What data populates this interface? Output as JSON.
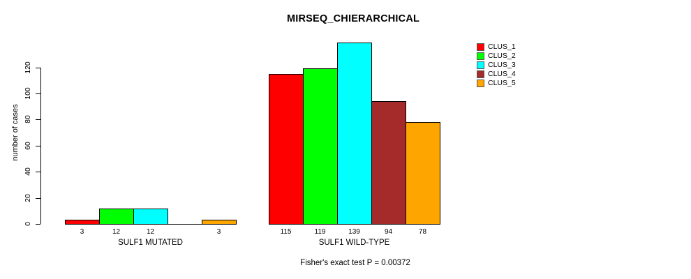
{
  "chart_data": {
    "type": "bar",
    "title": "MIRSEQ_CHIERARCHICAL",
    "ylabel": "number of cases",
    "xlabel": "",
    "ylim": [
      0,
      120
    ],
    "yticks": [
      0,
      20,
      40,
      60,
      80,
      100,
      120
    ],
    "grid": false,
    "legend_position": "top-right",
    "series_names": [
      "CLUS_1",
      "CLUS_2",
      "CLUS_3",
      "CLUS_4",
      "CLUS_5"
    ],
    "colors": [
      "#FF0000",
      "#00FF00",
      "#00FFFF",
      "#A52A2A",
      "#FFA500"
    ],
    "groups": [
      {
        "label": "SULF1 MUTATED",
        "values": [
          3,
          12,
          12,
          0,
          3
        ]
      },
      {
        "label": "SULF1 WILD-TYPE",
        "values": [
          115,
          119,
          139,
          94,
          78
        ]
      }
    ],
    "annotation": "Fisher's exact test P = 0.00372"
  }
}
